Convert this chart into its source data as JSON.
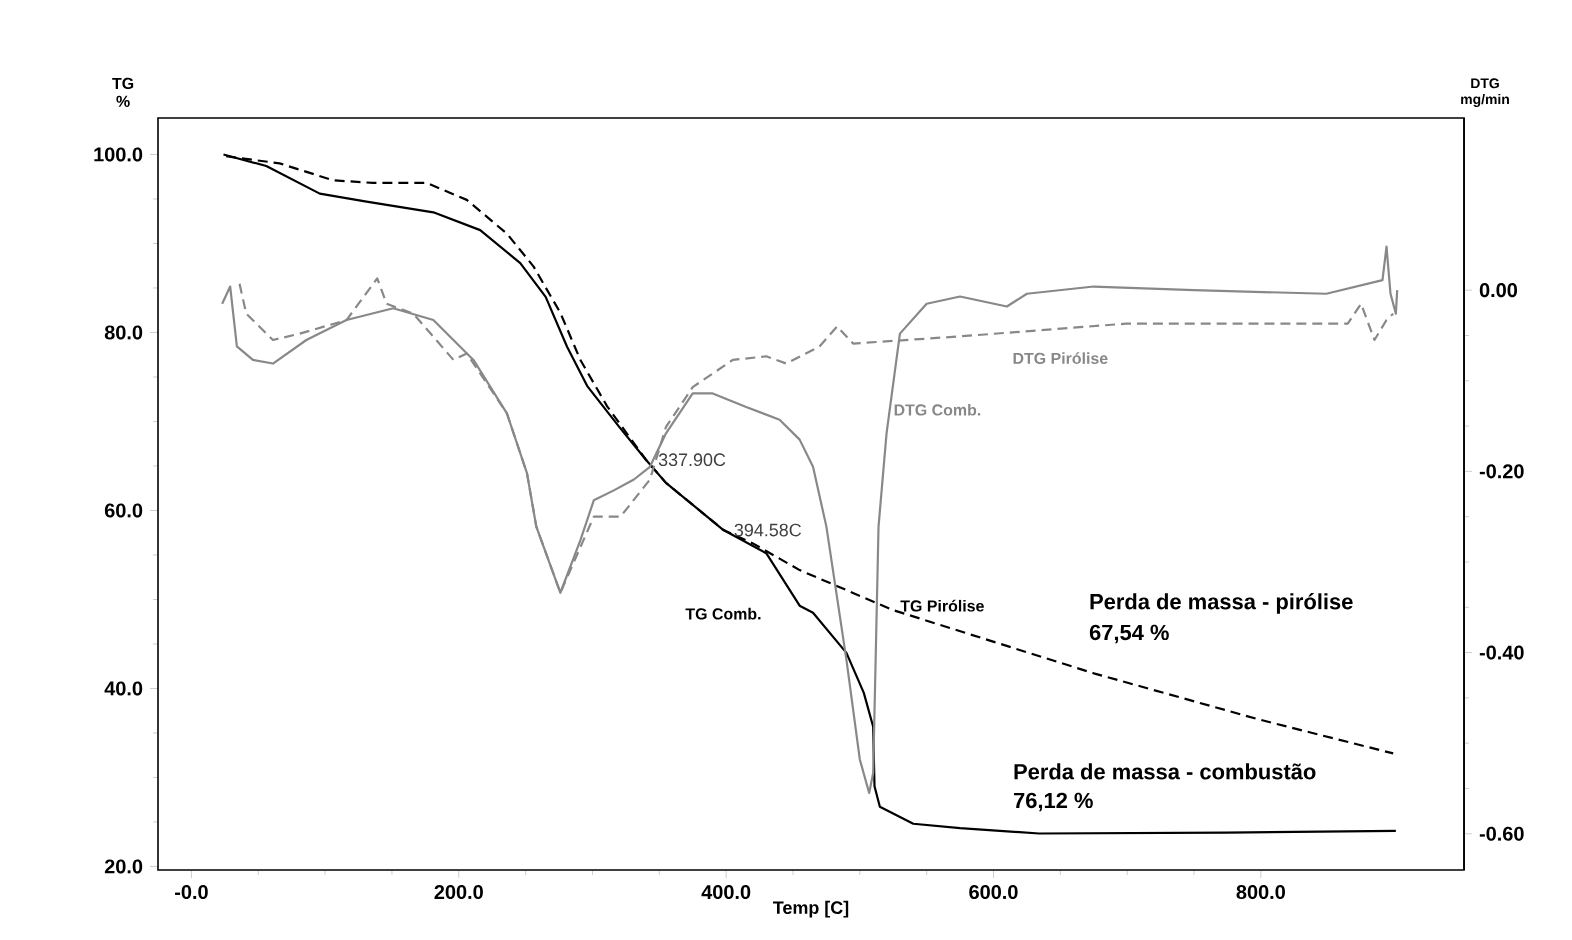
{
  "chart_data": {
    "type": "line",
    "xlabel": "Temp [C]",
    "ylabel": "TG %",
    "y2label": "DTG mg/min",
    "xlim": [
      -25,
      952
    ],
    "ylim": [
      19.6,
      104.1
    ],
    "y2lim": [
      -0.64,
      0.19
    ],
    "xticks": [
      {
        "value": 0,
        "label": "-0.0"
      },
      {
        "value": 200,
        "label": "200.0"
      },
      {
        "value": 400,
        "label": "400.0"
      },
      {
        "value": 600,
        "label": "600.0"
      },
      {
        "value": 800,
        "label": "800.0"
      }
    ],
    "yticks": [
      {
        "value": 20,
        "label": "20.0"
      },
      {
        "value": 40,
        "label": "40.0"
      },
      {
        "value": 60,
        "label": "60.0"
      },
      {
        "value": 80,
        "label": "80.0"
      },
      {
        "value": 100,
        "label": "100.0"
      }
    ],
    "y2ticks": [
      {
        "value": -0.6,
        "label": "-0.60"
      },
      {
        "value": -0.4,
        "label": "-0.40"
      },
      {
        "value": -0.2,
        "label": "-0.20"
      },
      {
        "value": 0,
        "label": "0.00"
      }
    ],
    "grid": false,
    "marker": "none",
    "series": [
      {
        "name": "TG Comb.",
        "color": "#000000",
        "line_style": "solid",
        "x": [
          24,
          56,
          96,
          131,
          181,
          216,
          246,
          265,
          281,
          296,
          320,
          340,
          355,
          398,
          430,
          455,
          465,
          490,
          503,
          510,
          511,
          515,
          540,
          575,
          634,
          774,
          901
        ],
        "values": [
          100,
          98.7,
          95.6,
          94.7,
          93.5,
          91.5,
          87.8,
          84,
          78.4,
          74,
          69.4,
          65.7,
          63.1,
          57.8,
          55.2,
          49.3,
          48.5,
          44,
          39.5,
          35.7,
          29,
          26.7,
          24.8,
          24.3,
          23.7,
          23.8,
          24.0
        ]
      },
      {
        "name": "TG Pirólise",
        "color": "#000000",
        "line_style": "dashed",
        "x": [
          26,
          66,
          106,
          136,
          176,
          206,
          236,
          256,
          276,
          291,
          311,
          340,
          355,
          398,
          420,
          455,
          525,
          675,
          799,
          899
        ],
        "values": [
          99.8,
          99.0,
          97.1,
          96.8,
          96.8,
          94.9,
          91.1,
          87.4,
          82.2,
          76.9,
          71.7,
          65.7,
          63.1,
          57.8,
          56.3,
          53.3,
          48.8,
          41.7,
          36.5,
          32.7
        ]
      },
      {
        "name": "DTG Comb.",
        "color": "#888888",
        "line_style": "solid",
        "axis": "y2",
        "x": [
          23,
          29,
          34,
          46,
          61,
          86,
          116,
          151,
          181,
          211,
          236,
          251,
          258,
          276,
          291,
          301,
          316,
          331,
          343,
          355,
          375,
          390,
          415,
          440,
          455,
          465,
          475,
          490,
          500,
          507,
          510,
          514,
          520,
          530,
          550,
          575,
          610,
          625,
          675,
          750,
          849,
          891,
          894,
          897,
          901,
          902
        ],
        "values": [
          -0.015,
          0.004,
          -0.062,
          -0.077,
          -0.081,
          -0.055,
          -0.033,
          -0.02,
          -0.033,
          -0.077,
          -0.136,
          -0.202,
          -0.261,
          -0.334,
          -0.276,
          -0.232,
          -0.221,
          -0.209,
          -0.195,
          -0.158,
          -0.114,
          -0.114,
          -0.129,
          -0.143,
          -0.165,
          -0.195,
          -0.261,
          -0.408,
          -0.518,
          -0.555,
          -0.533,
          -0.261,
          -0.158,
          -0.048,
          -0.015,
          -0.007,
          -0.018,
          -0.004,
          0.004,
          0,
          -0.004,
          0.011,
          0.048,
          -0.004,
          -0.026,
          0
        ]
      },
      {
        "name": "DTG Pirólise",
        "color": "#888888",
        "line_style": "dashed",
        "axis": "y2",
        "x": [
          36,
          41,
          61,
          81,
          116,
          139,
          146,
          166,
          196,
          206,
          236,
          251,
          258,
          276,
          301,
          321,
          343,
          355,
          375,
          405,
          430,
          445,
          470,
          483,
          495,
          575,
          699,
          865,
          875,
          885,
          894,
          899
        ],
        "values": [
          0.007,
          -0.026,
          -0.055,
          -0.048,
          -0.033,
          0.013,
          -0.015,
          -0.026,
          -0.077,
          -0.07,
          -0.136,
          -0.202,
          -0.261,
          -0.334,
          -0.25,
          -0.25,
          -0.209,
          -0.151,
          -0.107,
          -0.077,
          -0.073,
          -0.081,
          -0.062,
          -0.04,
          -0.059,
          -0.051,
          -0.037,
          -0.037,
          -0.015,
          -0.055,
          -0.033,
          -0.026
        ]
      }
    ],
    "annotations": [
      "Perda de massa - pirólise",
      "67,54 %",
      "Perda de massa - combustão",
      "76,12 %",
      {
        "text": "337.90C",
        "x": 337.9,
        "y": 65.7
      },
      {
        "text": "394.58C",
        "x": 394.58,
        "y": 57.8
      }
    ]
  }
}
